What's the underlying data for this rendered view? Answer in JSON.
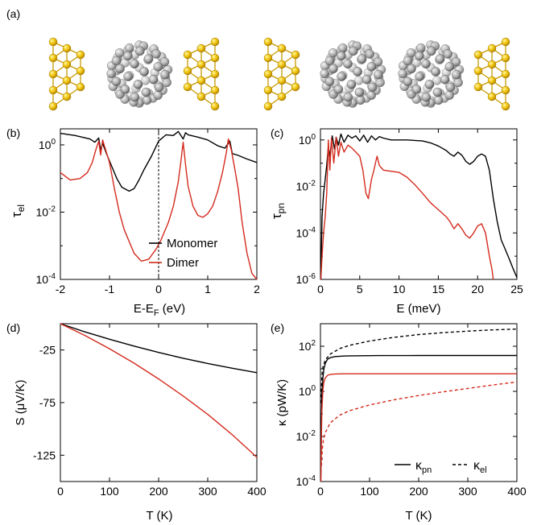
{
  "figure": {
    "panel_labels": [
      "(a)",
      "(b)",
      "(c)",
      "(d)",
      "(e)"
    ]
  },
  "chart_data": [
    {
      "panel": "(b)",
      "type": "line",
      "xlabel": "E-E",
      "xlabel_sub": "F",
      "xlabel_unit": " (eV)",
      "ylabel": "τ",
      "ylabel_sub": "el",
      "xlim": [
        -2,
        2
      ],
      "ylim": [
        0.0001,
        3
      ],
      "yscale": "log",
      "xticks": [
        -2,
        -1,
        0,
        1,
        2
      ],
      "xtick_labels": [
        "-2",
        "-1",
        "0",
        "1",
        "2"
      ],
      "yticks": [
        1,
        0.01,
        0.0001
      ],
      "ytick_labels": [
        {
          "base": "10",
          "exp": "0"
        },
        {
          "base": "10",
          "exp": "-2"
        },
        {
          "base": "10",
          "exp": "-4"
        }
      ],
      "vline_x": 0,
      "legend_position": "lower-right",
      "series": [
        {
          "name": "Monomer",
          "color": "#000000",
          "x": [
            -2,
            -1.7,
            -1.4,
            -1.3,
            -1.22,
            -1.18,
            -1.14,
            -1.05,
            -0.95,
            -0.85,
            -0.75,
            -0.6,
            -0.5,
            -0.4,
            -0.3,
            -0.15,
            0,
            0.15,
            0.3,
            0.4,
            0.5,
            0.55,
            0.6,
            0.8,
            1.0,
            1.2,
            1.35,
            1.45,
            1.5,
            1.6,
            1.8,
            2
          ],
          "y": [
            2.2,
            1.9,
            1.5,
            1.2,
            1.6,
            0.7,
            1.1,
            0.5,
            0.22,
            0.1,
            0.055,
            0.042,
            0.05,
            0.09,
            0.18,
            0.45,
            1.3,
            2.0,
            1.9,
            2.5,
            1.5,
            2.3,
            2.0,
            1.7,
            1.4,
            0.95,
            0.8,
            1.3,
            0.55,
            0.5,
            0.38,
            0.3
          ]
        },
        {
          "name": "Dimer",
          "color": "#d42b1e",
          "x": [
            -2,
            -1.8,
            -1.6,
            -1.45,
            -1.35,
            -1.28,
            -1.22,
            -1.18,
            -1.14,
            -1.1,
            -1.0,
            -0.9,
            -0.8,
            -0.7,
            -0.5,
            -0.35,
            -0.2,
            -0.05,
            0.05,
            0.2,
            0.3,
            0.4,
            0.45,
            0.5,
            0.55,
            0.6,
            0.7,
            0.8,
            0.9,
            1.0,
            1.1,
            1.2,
            1.3,
            1.38,
            1.42,
            1.45,
            1.48,
            1.55,
            1.62,
            1.7,
            1.8,
            1.9,
            2
          ],
          "y": [
            0.15,
            0.09,
            0.1,
            0.15,
            0.3,
            0.7,
            1.3,
            0.5,
            1.4,
            0.9,
            0.3,
            0.05,
            0.01,
            0.003,
            0.0006,
            0.00035,
            0.0004,
            0.0008,
            0.0015,
            0.005,
            0.015,
            0.08,
            0.3,
            1.2,
            0.25,
            0.06,
            0.015,
            0.008,
            0.007,
            0.009,
            0.015,
            0.04,
            0.15,
            0.6,
            1.5,
            1.0,
            0.7,
            0.2,
            0.05,
            0.005,
            0.0006,
            0.00015,
            0.0001
          ]
        }
      ],
      "legend": [
        "Monomer",
        "Dimer"
      ]
    },
    {
      "panel": "(c)",
      "type": "line",
      "xlabel": "E (meV)",
      "ylabel": "τ",
      "ylabel_sub": "pn",
      "xlim": [
        0,
        25
      ],
      "ylim": [
        1e-06,
        3
      ],
      "yscale": "log",
      "xticks": [
        0,
        5,
        10,
        15,
        20,
        25
      ],
      "xtick_labels": [
        "0",
        "5",
        "10",
        "15",
        "20",
        "25"
      ],
      "yticks": [
        1,
        0.01,
        0.0001,
        1e-06
      ],
      "ytick_labels": [
        {
          "base": "10",
          "exp": "0"
        },
        {
          "base": "10",
          "exp": "-2"
        },
        {
          "base": "10",
          "exp": "-4"
        },
        {
          "base": "10",
          "exp": "-6"
        }
      ],
      "series": [
        {
          "name": "",
          "color": "#000000",
          "x": [
            0.05,
            0.2,
            0.4,
            0.6,
            0.8,
            1.0,
            1.2,
            1.5,
            1.8,
            2.0,
            2.3,
            2.6,
            3.0,
            3.5,
            4.0,
            4.5,
            5.0,
            5.5,
            6.0,
            6.5,
            7.0,
            7.5,
            8.0,
            9,
            10,
            11,
            12,
            13,
            14,
            15,
            16,
            16.5,
            17,
            17.5,
            18,
            18.5,
            19,
            19.5,
            20,
            20.5,
            21,
            21.5,
            22,
            22.5,
            23,
            23.5,
            24,
            24.5,
            25
          ],
          "y": [
            1e-06,
            0.0005,
            0.005,
            0.02,
            0.08,
            0.5,
            0.2,
            1.5,
            0.4,
            1.3,
            0.6,
            1.8,
            0.8,
            1.6,
            1.2,
            1.5,
            0.9,
            1.6,
            0.8,
            1.5,
            1.0,
            1.4,
            1.2,
            1.0,
            1.0,
            1.0,
            0.95,
            0.9,
            0.75,
            0.55,
            0.35,
            0.25,
            0.2,
            0.3,
            0.22,
            0.12,
            0.09,
            0.12,
            0.2,
            0.25,
            0.2,
            0.05,
            0.003,
            0.0003,
            5e-05,
            2e-05,
            8e-06,
            3e-06,
            1.2e-06
          ]
        },
        {
          "name": "",
          "color": "#d42b1e",
          "x": [
            0.05,
            0.2,
            0.4,
            0.6,
            0.8,
            1.0,
            1.2,
            1.4,
            1.7,
            2.0,
            2.3,
            2.6,
            3.0,
            3.5,
            4.0,
            4.5,
            5.0,
            5.4,
            5.8,
            6.1,
            6.5,
            6.8,
            7.0,
            7.2,
            7.5,
            8.0,
            9,
            10,
            11,
            12,
            13,
            14,
            15,
            16,
            16.5,
            17,
            17.5,
            18,
            18.5,
            19,
            19.5,
            20,
            20.5,
            21,
            21.5,
            21.8,
            22.0
          ],
          "y": [
            1e-06,
            1e-05,
            0.0001,
            0.0005,
            0.005,
            1.0,
            0.05,
            1.2,
            0.1,
            1.3,
            0.2,
            0.8,
            0.3,
            0.6,
            0.45,
            0.3,
            0.2,
            0.05,
            0.005,
            0.003,
            0.02,
            0.05,
            0.1,
            0.2,
            0.08,
            0.05,
            0.045,
            0.04,
            0.025,
            0.012,
            0.005,
            0.002,
            0.001,
            0.0005,
            0.0003,
            0.00015,
            0.00025,
            0.00015,
            8e-05,
            6e-05,
            0.0001,
            0.0002,
            0.00025,
            0.0001,
            1e-05,
            3e-06,
            1e-06
          ]
        }
      ]
    },
    {
      "panel": "(d)",
      "type": "line",
      "xlabel": "T (K)",
      "ylabel": "S (μV/K)",
      "xlim": [
        0,
        400
      ],
      "ylim": [
        -150,
        0
      ],
      "yscale": "linear",
      "xticks": [
        0,
        100,
        200,
        300,
        400
      ],
      "xtick_labels": [
        "0",
        "100",
        "200",
        "300",
        "400"
      ],
      "yticks": [
        -25,
        -75,
        -125
      ],
      "ytick_labels": [
        "-25",
        "-75",
        "-125"
      ],
      "series": [
        {
          "name": "",
          "color": "#000000",
          "x": [
            0,
            50,
            100,
            150,
            200,
            250,
            300,
            350,
            400
          ],
          "y": [
            0,
            -7.8,
            -14.8,
            -21.3,
            -27.3,
            -32.8,
            -37.8,
            -42.3,
            -46.5
          ]
        },
        {
          "name": "",
          "color": "#d42b1e",
          "x": [
            0,
            50,
            100,
            150,
            200,
            250,
            300,
            350,
            400
          ],
          "y": [
            0,
            -11.2,
            -23.8,
            -37.5,
            -52.5,
            -68.7,
            -86.2,
            -105.5,
            -127
          ]
        }
      ]
    },
    {
      "panel": "(e)",
      "type": "line",
      "xlabel": "T (K)",
      "ylabel": "κ (pW/K)",
      "xlim": [
        0,
        400
      ],
      "ylim": [
        0.0001,
        1000
      ],
      "yscale": "log",
      "xticks": [
        0,
        100,
        200,
        300,
        400
      ],
      "xtick_labels": [
        "0",
        "100",
        "200",
        "300",
        "400"
      ],
      "yticks": [
        100,
        1,
        0.01,
        0.0001
      ],
      "ytick_labels": [
        {
          "base": "10",
          "exp": "2"
        },
        {
          "base": "10",
          "exp": "0"
        },
        {
          "base": "10",
          "exp": "-2"
        },
        {
          "base": "10",
          "exp": "-4"
        }
      ],
      "legend": [
        {
          "symbol": "κ",
          "sub": "pn",
          "style": "solid"
        },
        {
          "symbol": "κ",
          "sub": "el",
          "style": "dashed"
        }
      ],
      "series": [
        {
          "name": "",
          "color": "#000000",
          "style": "solid",
          "x": [
            1,
            2,
            3,
            5,
            7,
            10,
            15,
            20,
            30,
            50,
            80,
            120,
            200,
            300,
            400
          ],
          "y": [
            0.0002,
            0.05,
            0.8,
            4,
            10,
            18,
            27,
            31,
            35,
            37,
            38,
            38.5,
            39,
            39,
            39
          ]
        },
        {
          "name": "",
          "color": "#000000",
          "style": "dashed",
          "x": [
            1,
            3,
            5,
            10,
            20,
            40,
            60,
            100,
            150,
            200,
            250,
            300,
            350,
            400
          ],
          "y": [
            0.3,
            5,
            12,
            25,
            45,
            80,
            110,
            170,
            250,
            330,
            400,
            470,
            530,
            580
          ]
        },
        {
          "name": "",
          "color": "#d42b1e",
          "style": "solid",
          "x": [
            1,
            2,
            3,
            5,
            7,
            10,
            15,
            20,
            30,
            50,
            80,
            120,
            200,
            300,
            400
          ],
          "y": [
            0.0001,
            0.01,
            0.15,
            1.2,
            2.6,
            4.0,
            5.2,
            5.6,
            5.9,
            6.0,
            6.0,
            6.0,
            6.0,
            6.0,
            6.0
          ]
        },
        {
          "name": "",
          "color": "#d42b1e",
          "style": "dashed",
          "x": [
            2,
            4,
            6,
            10,
            20,
            40,
            60,
            100,
            150,
            200,
            250,
            300,
            350,
            400
          ],
          "y": [
            0.0005,
            0.003,
            0.007,
            0.015,
            0.04,
            0.09,
            0.14,
            0.25,
            0.42,
            0.65,
            0.95,
            1.35,
            1.9,
            2.6
          ]
        }
      ]
    }
  ]
}
